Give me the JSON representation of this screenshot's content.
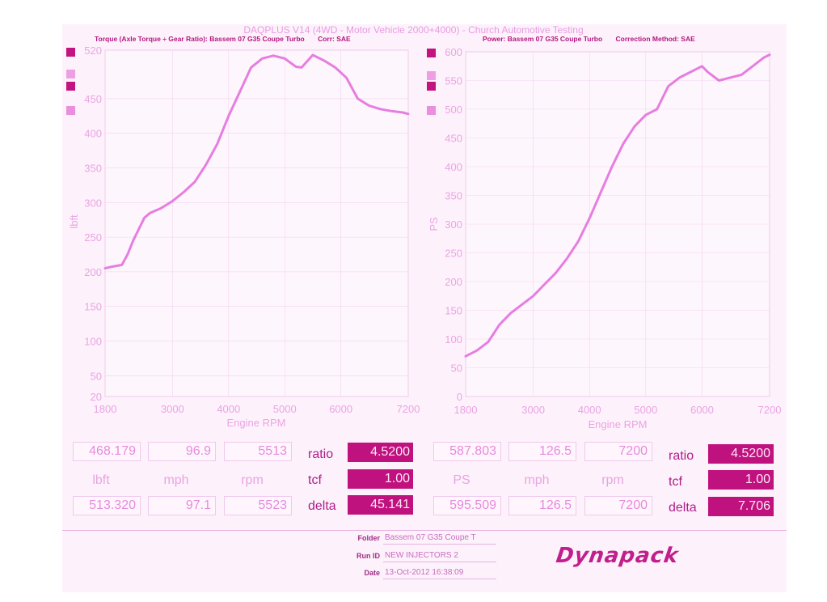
{
  "banner": "DAQPLUS V14 (4WD - Motor Vehicle 2000+4000) - Church Automotive Testing",
  "left_header": {
    "title": "Torque (Axle Torque ÷ Gear Ratio): Bassem 07 G35 Coupe Turbo",
    "corr": "Corr: SAE"
  },
  "right_header": {
    "title": "Power: Bassem 07 G35 Coupe Turbo",
    "corr": "Correction Method: SAE"
  },
  "colors": {
    "curve": "#e67ee0",
    "legend_dark": "#c2137f",
    "legend_light": "#ea8fde",
    "grid": "#f1d3ed"
  },
  "chart_data": [
    {
      "type": "line",
      "title": "",
      "xlabel": "Engine RPM",
      "ylabel": "lbft",
      "xlim": [
        1800,
        7200
      ],
      "ylim": [
        20,
        520
      ],
      "x_ticks": [
        1800,
        3000,
        4000,
        5000,
        6000,
        7200
      ],
      "y_ticks": [
        20,
        50,
        100,
        150,
        200,
        250,
        300,
        350,
        400,
        450,
        520
      ],
      "grid": true,
      "series": [
        {
          "x": [
            1800,
            1900,
            2100,
            2200,
            2300,
            2500,
            2600,
            2800,
            3000,
            3200,
            3400,
            3600,
            3800,
            4000,
            4200,
            4400,
            4600,
            4800,
            5000,
            5200,
            5300,
            5500,
            5700,
            5900,
            6100,
            6300,
            6500,
            6700,
            6900,
            7100,
            7200
          ],
          "y": [
            205,
            207,
            210,
            225,
            245,
            278,
            285,
            292,
            302,
            315,
            330,
            355,
            385,
            425,
            460,
            495,
            508,
            512,
            508,
            496,
            495,
            513,
            505,
            495,
            480,
            450,
            440,
            435,
            432,
            430,
            428
          ]
        }
      ]
    },
    {
      "type": "line",
      "title": "",
      "xlabel": "Engine RPM",
      "ylabel": "PS",
      "xlim": [
        1800,
        7200
      ],
      "ylim": [
        0,
        600
      ],
      "x_ticks": [
        1800,
        3000,
        4000,
        5000,
        6000,
        7200
      ],
      "y_ticks": [
        0,
        50,
        100,
        150,
        200,
        250,
        300,
        350,
        400,
        450,
        500,
        550,
        600
      ],
      "grid": true,
      "series": [
        {
          "x": [
            1800,
            2000,
            2200,
            2400,
            2600,
            2800,
            3000,
            3200,
            3400,
            3600,
            3800,
            4000,
            4200,
            4400,
            4600,
            4800,
            5000,
            5200,
            5400,
            5600,
            5800,
            6000,
            6100,
            6300,
            6500,
            6700,
            6900,
            7100,
            7200
          ],
          "y": [
            70,
            80,
            95,
            125,
            145,
            160,
            175,
            195,
            215,
            240,
            270,
            310,
            355,
            400,
            440,
            470,
            490,
            500,
            540,
            555,
            565,
            575,
            565,
            550,
            555,
            560,
            575,
            590,
            595
          ]
        }
      ]
    }
  ],
  "readout_left": {
    "row1": [
      "468.179",
      "96.9",
      "5513"
    ],
    "row2": [
      "lbft",
      "mph",
      "rpm"
    ],
    "row3": [
      "513.320",
      "97.1",
      "5523"
    ],
    "labels": [
      "ratio",
      "tcf",
      "delta"
    ],
    "values": [
      "4.5200",
      "1.00",
      "45.141"
    ]
  },
  "readout_right": {
    "row1": [
      "587.803",
      "126.5",
      "7200"
    ],
    "row2": [
      "PS",
      "mph",
      "rpm"
    ],
    "row3": [
      "595.509",
      "126.5",
      "7200"
    ],
    "labels": [
      "ratio",
      "tcf",
      "delta"
    ],
    "values": [
      "4.5200",
      "1.00",
      "7.706"
    ]
  },
  "footer": {
    "folder_label": "Folder",
    "folder_value": "Bassem 07 G35 Coupe T",
    "runid_label": "Run ID",
    "runid_value": "NEW INJECTORS 2",
    "date_label": "Date",
    "date_value": "13-Oct-2012 16:38:09"
  },
  "logo": "Dynapack"
}
